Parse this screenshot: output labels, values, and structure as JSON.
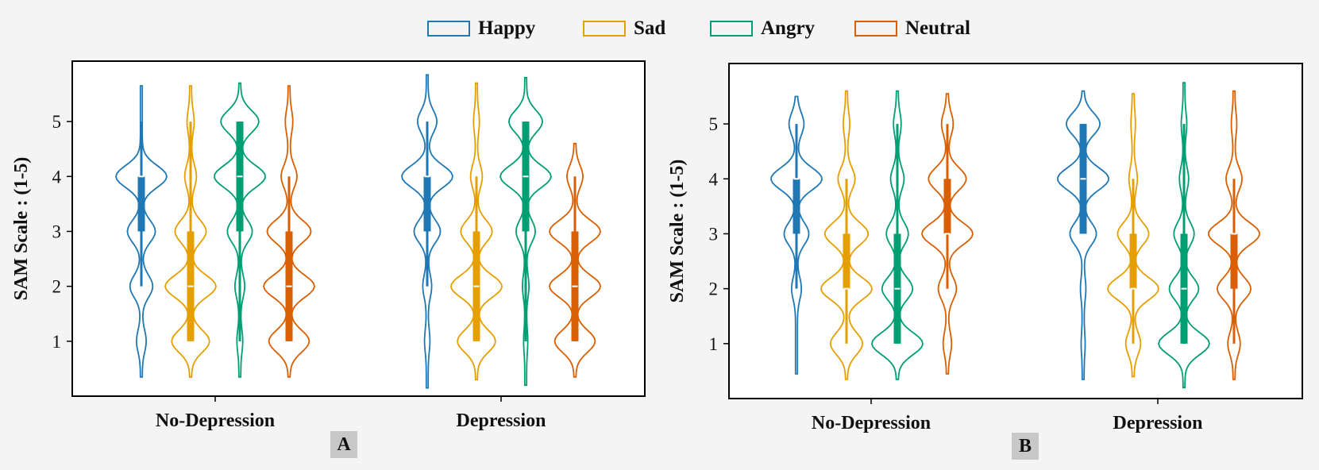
{
  "chart_data": {
    "type": "violin",
    "legend": [
      {
        "name": "Happy",
        "color": "#1f78b4"
      },
      {
        "name": "Sad",
        "color": "#e69f00"
      },
      {
        "name": "Angry",
        "color": "#009e73"
      },
      {
        "name": "Neutral",
        "color": "#d95f02"
      }
    ],
    "panels": [
      {
        "label": "A",
        "ylabel": "SAM Scale : (1-5)",
        "yticks": [
          1,
          2,
          3,
          4,
          5
        ],
        "ylim": [
          0.0,
          6.1
        ],
        "categories": [
          "No-Depression",
          "Depression"
        ],
        "groups": [
          {
            "category": "No-Depression",
            "violins": [
              {
                "series": "Happy",
                "min": 0.35,
                "max": 5.65,
                "q1": 3,
                "median": 4,
                "q3": 4,
                "wlo": 2,
                "whi": 5,
                "modes": [
                  [
                    4,
                    0.75
                  ],
                  [
                    3,
                    0.4
                  ],
                  [
                    2,
                    0.32
                  ],
                  [
                    1,
                    0.12
                  ]
                ]
              },
              {
                "series": "Sad",
                "min": 0.35,
                "max": 5.65,
                "q1": 1,
                "median": 2,
                "q3": 3,
                "wlo": 1,
                "whi": 5,
                "modes": [
                  [
                    1,
                    0.55
                  ],
                  [
                    2,
                    0.75
                  ],
                  [
                    3,
                    0.45
                  ],
                  [
                    4,
                    0.15
                  ],
                  [
                    5,
                    0.08
                  ]
                ]
              },
              {
                "series": "Angry",
                "min": 0.35,
                "max": 5.7,
                "q1": 3,
                "median": 4,
                "q3": 5,
                "wlo": 1,
                "whi": 5,
                "modes": [
                  [
                    5,
                    0.55
                  ],
                  [
                    4,
                    0.75
                  ],
                  [
                    3,
                    0.35
                  ],
                  [
                    2,
                    0.12
                  ],
                  [
                    1,
                    0.06
                  ]
                ]
              },
              {
                "series": "Neutral",
                "min": 0.35,
                "max": 5.65,
                "q1": 1,
                "median": 2,
                "q3": 3,
                "wlo": 1,
                "whi": 4,
                "modes": [
                  [
                    1,
                    0.55
                  ],
                  [
                    2,
                    0.7
                  ],
                  [
                    3,
                    0.6
                  ],
                  [
                    4,
                    0.2
                  ],
                  [
                    5,
                    0.08
                  ]
                ]
              }
            ]
          },
          {
            "category": "Depression",
            "violins": [
              {
                "series": "Happy",
                "min": 0.15,
                "max": 5.85,
                "q1": 3,
                "median": 4,
                "q3": 4,
                "wlo": 2,
                "whi": 5,
                "modes": [
                  [
                    4,
                    0.7
                  ],
                  [
                    3,
                    0.35
                  ],
                  [
                    2,
                    0.1
                  ],
                  [
                    1,
                    0.05
                  ],
                  [
                    5,
                    0.25
                  ]
                ]
              },
              {
                "series": "Sad",
                "min": 0.3,
                "max": 5.7,
                "q1": 1,
                "median": 2,
                "q3": 3,
                "wlo": 1,
                "whi": 4,
                "modes": [
                  [
                    1,
                    0.55
                  ],
                  [
                    2,
                    0.75
                  ],
                  [
                    3,
                    0.45
                  ],
                  [
                    4,
                    0.15
                  ],
                  [
                    5,
                    0.06
                  ]
                ]
              },
              {
                "series": "Angry",
                "min": 0.2,
                "max": 5.8,
                "q1": 3,
                "median": 4,
                "q3": 5,
                "wlo": 1,
                "whi": 5,
                "modes": [
                  [
                    5,
                    0.55
                  ],
                  [
                    4,
                    0.85
                  ],
                  [
                    3,
                    0.3
                  ],
                  [
                    2,
                    0.08
                  ],
                  [
                    1,
                    0.04
                  ]
                ]
              },
              {
                "series": "Neutral",
                "min": 0.35,
                "max": 4.6,
                "q1": 1,
                "median": 2,
                "q3": 3,
                "wlo": 1,
                "whi": 4,
                "modes": [
                  [
                    1,
                    0.55
                  ],
                  [
                    2,
                    0.7
                  ],
                  [
                    3,
                    0.7
                  ],
                  [
                    4,
                    0.2
                  ]
                ]
              }
            ]
          }
        ]
      },
      {
        "label": "B",
        "ylabel": "SAM Scale : (1-5)",
        "yticks": [
          1,
          2,
          3,
          4,
          5
        ],
        "ylim": [
          0.0,
          6.1
        ],
        "categories": [
          "No-Depression",
          "Depression"
        ],
        "groups": [
          {
            "category": "No-Depression",
            "violins": [
              {
                "series": "Happy",
                "min": 0.45,
                "max": 5.5,
                "q1": 3,
                "median": 4,
                "q3": 4,
                "wlo": 2,
                "whi": 5,
                "modes": [
                  [
                    4,
                    0.75
                  ],
                  [
                    3,
                    0.35
                  ],
                  [
                    5,
                    0.2
                  ],
                  [
                    2,
                    0.12
                  ]
                ]
              },
              {
                "series": "Sad",
                "min": 0.35,
                "max": 5.6,
                "q1": 2,
                "median": 2,
                "q3": 3,
                "wlo": 1,
                "whi": 4,
                "modes": [
                  [
                    1,
                    0.4
                  ],
                  [
                    2,
                    0.65
                  ],
                  [
                    3,
                    0.55
                  ],
                  [
                    4,
                    0.2
                  ],
                  [
                    5,
                    0.06
                  ]
                ]
              },
              {
                "series": "Angry",
                "min": 0.35,
                "max": 5.6,
                "q1": 1,
                "median": 2,
                "q3": 3,
                "wlo": 1,
                "whi": 5,
                "modes": [
                  [
                    1,
                    0.85
                  ],
                  [
                    2,
                    0.5
                  ],
                  [
                    3,
                    0.35
                  ],
                  [
                    4,
                    0.2
                  ],
                  [
                    5,
                    0.1
                  ]
                ]
              },
              {
                "series": "Neutral",
                "min": 0.45,
                "max": 5.55,
                "q1": 3,
                "median": 3,
                "q3": 4,
                "wlo": 2,
                "whi": 5,
                "modes": [
                  [
                    3,
                    0.75
                  ],
                  [
                    4,
                    0.55
                  ],
                  [
                    2,
                    0.25
                  ],
                  [
                    1,
                    0.1
                  ],
                  [
                    5,
                    0.15
                  ]
                ]
              }
            ]
          },
          {
            "category": "Depression",
            "violins": [
              {
                "series": "Happy",
                "min": 0.35,
                "max": 5.6,
                "q1": 3,
                "median": 4,
                "q3": 5,
                "wlo": 3,
                "whi": 5,
                "modes": [
                  [
                    4,
                    0.7
                  ],
                  [
                    5,
                    0.45
                  ],
                  [
                    3,
                    0.35
                  ],
                  [
                    2,
                    0.05
                  ],
                  [
                    1,
                    0.03
                  ]
                ]
              },
              {
                "series": "Sad",
                "min": 0.4,
                "max": 5.55,
                "q1": 2,
                "median": 2,
                "q3": 3,
                "wlo": 1,
                "whi": 4,
                "modes": [
                  [
                    2,
                    0.75
                  ],
                  [
                    3,
                    0.45
                  ],
                  [
                    1,
                    0.2
                  ],
                  [
                    4,
                    0.1
                  ],
                  [
                    5,
                    0.04
                  ]
                ]
              },
              {
                "series": "Angry",
                "min": 0.2,
                "max": 5.75,
                "q1": 1,
                "median": 2,
                "q3": 3,
                "wlo": 1,
                "whi": 5,
                "modes": [
                  [
                    1,
                    0.8
                  ],
                  [
                    2,
                    0.45
                  ],
                  [
                    3,
                    0.3
                  ],
                  [
                    4,
                    0.12
                  ],
                  [
                    5,
                    0.06
                  ]
                ]
              },
              {
                "series": "Neutral",
                "min": 0.35,
                "max": 5.6,
                "q1": 2,
                "median": 3,
                "q3": 3,
                "wlo": 1,
                "whi": 4,
                "modes": [
                  [
                    3,
                    0.7
                  ],
                  [
                    2,
                    0.45
                  ],
                  [
                    4,
                    0.2
                  ],
                  [
                    1,
                    0.15
                  ],
                  [
                    5,
                    0.05
                  ]
                ]
              }
            ]
          }
        ]
      }
    ]
  }
}
